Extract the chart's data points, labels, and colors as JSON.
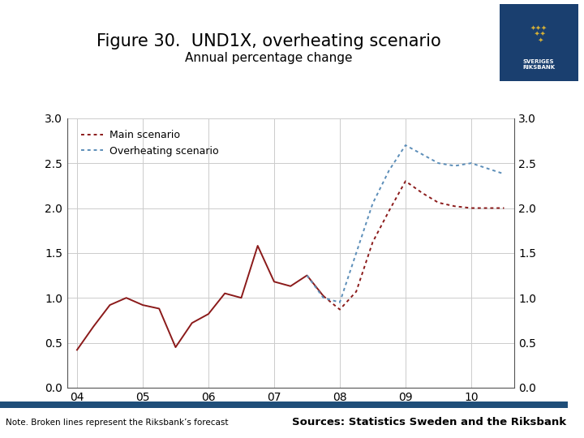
{
  "title": "Figure 30.  UND1X, overheating scenario",
  "subtitle": "Annual percentage change",
  "note": "Note. Broken lines represent the Riksbank’s forecast",
  "sources": "Sources: Statistics Sweden and the Riksbank",
  "ylim": [
    0.0,
    3.0
  ],
  "xtick_labels": [
    "04",
    "05",
    "06",
    "07",
    "08",
    "09",
    "10"
  ],
  "yticks": [
    0.0,
    0.5,
    1.0,
    1.5,
    2.0,
    2.5,
    3.0
  ],
  "main_solid_x": [
    2004.0,
    2004.25,
    2004.5,
    2004.75,
    2005.0,
    2005.25,
    2005.5,
    2005.75,
    2006.0,
    2006.25,
    2006.5,
    2006.75,
    2007.0,
    2007.25,
    2007.5,
    2007.75
  ],
  "main_solid_y": [
    0.42,
    0.68,
    0.92,
    1.0,
    0.92,
    0.88,
    0.45,
    0.72,
    0.82,
    1.05,
    1.0,
    1.58,
    1.18,
    1.13,
    1.25,
    1.02
  ],
  "main_dashed_x": [
    2007.75,
    2008.0,
    2008.25,
    2008.5,
    2008.75,
    2009.0,
    2009.25,
    2009.5,
    2009.75,
    2010.0,
    2010.25,
    2010.5
  ],
  "main_dashed_y": [
    1.02,
    0.87,
    1.07,
    1.62,
    1.97,
    2.3,
    2.17,
    2.06,
    2.02,
    2.0,
    2.0,
    2.0
  ],
  "over_dashed_x": [
    2007.5,
    2007.75,
    2008.0,
    2008.25,
    2008.5,
    2008.75,
    2009.0,
    2009.25,
    2009.5,
    2009.75,
    2010.0,
    2010.25,
    2010.5
  ],
  "over_dashed_y": [
    1.25,
    1.0,
    0.95,
    1.5,
    2.05,
    2.42,
    2.7,
    2.6,
    2.5,
    2.47,
    2.5,
    2.44,
    2.38
  ],
  "main_color": "#8B1A1A",
  "over_color": "#5B8DB8",
  "footer_bar_color": "#1F4E79",
  "title_fontsize": 15,
  "subtitle_fontsize": 11,
  "legend_fontsize": 9,
  "tick_fontsize": 10,
  "note_fontsize": 7.5,
  "source_fontsize": 9.5
}
